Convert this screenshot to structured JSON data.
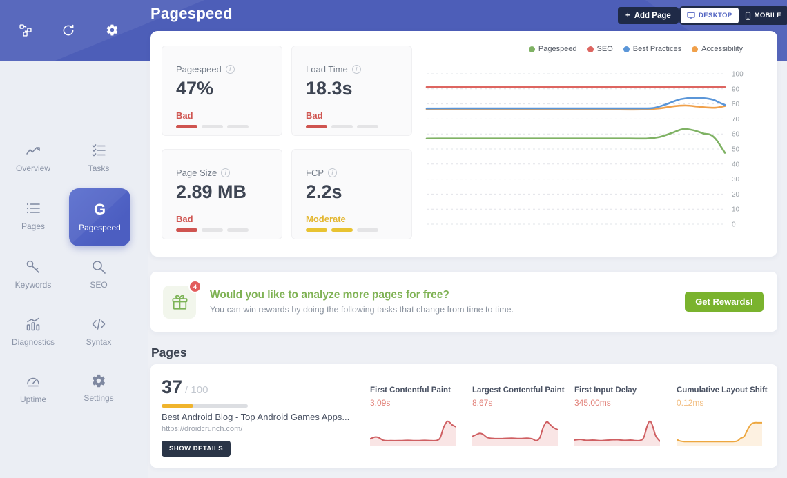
{
  "icons": {
    "plus": "+",
    "info": "i"
  },
  "header": {
    "title": "Pagespeed",
    "add_page_label": "Add Page",
    "desktop_label": "DESKTOP",
    "mobile_label": "MOBILE"
  },
  "sidebar": {
    "items": [
      {
        "label": "Overview"
      },
      {
        "label": "Tasks"
      },
      {
        "label": "Pages"
      },
      {
        "label": "Pagespeed",
        "active": true,
        "logo": "G"
      },
      {
        "label": "Keywords"
      },
      {
        "label": "SEO"
      },
      {
        "label": "Diagnostics"
      },
      {
        "label": "Syntax"
      },
      {
        "label": "Uptime"
      },
      {
        "label": "Settings"
      }
    ]
  },
  "metric_cards": [
    {
      "label": "Pagespeed",
      "value": "47%",
      "status": "Bad",
      "status_color": "#cf5450",
      "segments": 3,
      "filled": 1,
      "seg_color": "#cf5450",
      "seg_empty": "#e4e4e6"
    },
    {
      "label": "Load Time",
      "value": "18.3s",
      "status": "Bad",
      "status_color": "#cf5450",
      "segments": 3,
      "filled": 1,
      "seg_color": "#cf5450",
      "seg_empty": "#e4e4e6"
    },
    {
      "label": "Page Size",
      "value": "2.89 MB",
      "status": "Bad",
      "status_color": "#cf5450",
      "segments": 3,
      "filled": 1,
      "seg_color": "#cf5450",
      "seg_empty": "#e4e4e6"
    },
    {
      "label": "FCP",
      "value": "2.2s",
      "status": "Moderate",
      "status_color": "#e3b62e",
      "segments": 3,
      "filled": 2,
      "seg_color": "#e8c332",
      "seg_empty": "#e4e4e6"
    }
  ],
  "chart_data": {
    "main": {
      "type": "line",
      "title": "",
      "xlabel": "",
      "ylabel": "",
      "ylim": [
        0,
        100
      ],
      "yticks": [
        100,
        90,
        80,
        70,
        60,
        50,
        40,
        30,
        20,
        10,
        0
      ],
      "grid": "dashed-horizontal",
      "legend_position": "top-right",
      "axis_side": "right",
      "series": [
        {
          "name": "Pagespeed",
          "color": "#7fb264",
          "points": [
            [
              0,
              57
            ],
            [
              10,
              57
            ],
            [
              20,
              57
            ],
            [
              30,
              57
            ],
            [
              40,
              57
            ],
            [
              50,
              57
            ],
            [
              60,
              57
            ],
            [
              68,
              57
            ],
            [
              74,
              57
            ],
            [
              78,
              58
            ],
            [
              82,
              60.5
            ],
            [
              85,
              62.8
            ],
            [
              87,
              63.3
            ],
            [
              90,
              62.2
            ],
            [
              93,
              60.2
            ],
            [
              95,
              59.6
            ],
            [
              97,
              56.5
            ],
            [
              100,
              47.5
            ]
          ]
        },
        {
          "name": "SEO",
          "color": "#dd6560",
          "points": [
            [
              0,
              91.2
            ],
            [
              20,
              91.2
            ],
            [
              40,
              91.2
            ],
            [
              60,
              91.2
            ],
            [
              80,
              91.2
            ],
            [
              100,
              91.2
            ]
          ]
        },
        {
          "name": "Accessibility",
          "color": "#f0a04a",
          "points": [
            [
              0,
              76.3
            ],
            [
              15,
              76.3
            ],
            [
              30,
              76.3
            ],
            [
              45,
              76.3
            ],
            [
              60,
              76.3
            ],
            [
              72,
              76.3
            ],
            [
              78,
              77
            ],
            [
              83,
              78.5
            ],
            [
              87,
              78.9
            ],
            [
              91,
              78.2
            ],
            [
              94,
              77.6
            ],
            [
              97,
              77.5
            ],
            [
              100,
              78.6
            ]
          ]
        },
        {
          "name": "Best Practices",
          "color": "#5b96d8",
          "points": [
            [
              0,
              77
            ],
            [
              15,
              77
            ],
            [
              30,
              77
            ],
            [
              45,
              77
            ],
            [
              60,
              77
            ],
            [
              72,
              77
            ],
            [
              76,
              77.3
            ],
            [
              80,
              79.5
            ],
            [
              84,
              82.5
            ],
            [
              87,
              83.7
            ],
            [
              90,
              83.9
            ],
            [
              93,
              83.8
            ],
            [
              96,
              82.8
            ],
            [
              98,
              81
            ],
            [
              100,
              79.3
            ]
          ]
        }
      ]
    },
    "vitals": [
      {
        "type": "area",
        "label": "First Contentful Paint",
        "value": "3.09s",
        "value_color": "#e2837b",
        "stroke": "#cf5f62",
        "fill": "rgba(223,113,113,0.18)",
        "points": [
          [
            0,
            20
          ],
          [
            6,
            26
          ],
          [
            10,
            24
          ],
          [
            16,
            15
          ],
          [
            24,
            14
          ],
          [
            34,
            14
          ],
          [
            44,
            15
          ],
          [
            54,
            14
          ],
          [
            64,
            15
          ],
          [
            72,
            14
          ],
          [
            78,
            15
          ],
          [
            82,
            24
          ],
          [
            86,
            58
          ],
          [
            90,
            77
          ],
          [
            93,
            74
          ],
          [
            96,
            66
          ],
          [
            100,
            60
          ]
        ]
      },
      {
        "type": "area",
        "label": "Largest Contentful Paint",
        "value": "8.67s",
        "value_color": "#e2837b",
        "stroke": "#cf5f62",
        "fill": "rgba(223,113,113,0.18)",
        "points": [
          [
            0,
            28
          ],
          [
            5,
            34
          ],
          [
            9,
            38
          ],
          [
            13,
            34
          ],
          [
            18,
            24
          ],
          [
            26,
            21
          ],
          [
            36,
            21
          ],
          [
            46,
            22
          ],
          [
            56,
            21
          ],
          [
            64,
            22
          ],
          [
            70,
            20
          ],
          [
            75,
            14
          ],
          [
            79,
            24
          ],
          [
            83,
            58
          ],
          [
            87,
            76
          ],
          [
            90,
            70
          ],
          [
            95,
            57
          ],
          [
            100,
            50
          ]
        ]
      },
      {
        "type": "area",
        "label": "First Input Delay",
        "value": "345.00ms",
        "value_color": "#e2837b",
        "stroke": "#cf5f62",
        "fill": "rgba(223,113,113,0.18)",
        "points": [
          [
            0,
            16
          ],
          [
            7,
            18
          ],
          [
            14,
            15
          ],
          [
            22,
            16
          ],
          [
            30,
            14
          ],
          [
            40,
            16
          ],
          [
            50,
            17
          ],
          [
            58,
            15
          ],
          [
            66,
            16
          ],
          [
            72,
            14
          ],
          [
            77,
            15
          ],
          [
            81,
            24
          ],
          [
            85,
            62
          ],
          [
            88,
            78
          ],
          [
            91,
            66
          ],
          [
            95,
            30
          ],
          [
            100,
            12
          ]
        ]
      },
      {
        "type": "area",
        "label": "Cumulative Layout Shift",
        "value": "0.12ms",
        "value_color": "#f2bd80",
        "stroke": "#eda73f",
        "fill": "rgba(240,170,70,0.16)",
        "points": [
          [
            0,
            18
          ],
          [
            4,
            13
          ],
          [
            9,
            11
          ],
          [
            18,
            11
          ],
          [
            30,
            11
          ],
          [
            45,
            11
          ],
          [
            58,
            11
          ],
          [
            66,
            11
          ],
          [
            71,
            13
          ],
          [
            75,
            22
          ],
          [
            79,
            28
          ],
          [
            83,
            50
          ],
          [
            87,
            68
          ],
          [
            91,
            73
          ],
          [
            95,
            73
          ],
          [
            100,
            73
          ]
        ]
      }
    ]
  },
  "rewards": {
    "badge": "4",
    "heading": "Would you like to analyze more pages for free?",
    "subtext": "You can win rewards by doing the following tasks that change from time to time.",
    "button_label": "Get Rewards!"
  },
  "pages_section": {
    "heading": "Pages",
    "page": {
      "score": "37",
      "score_total": "/ 100",
      "score_pct": 37,
      "title": "Best Android Blog - Top Android Games Apps...",
      "url": "https://droidcrunch.com/",
      "details_label": "SHOW DETAILS"
    }
  }
}
